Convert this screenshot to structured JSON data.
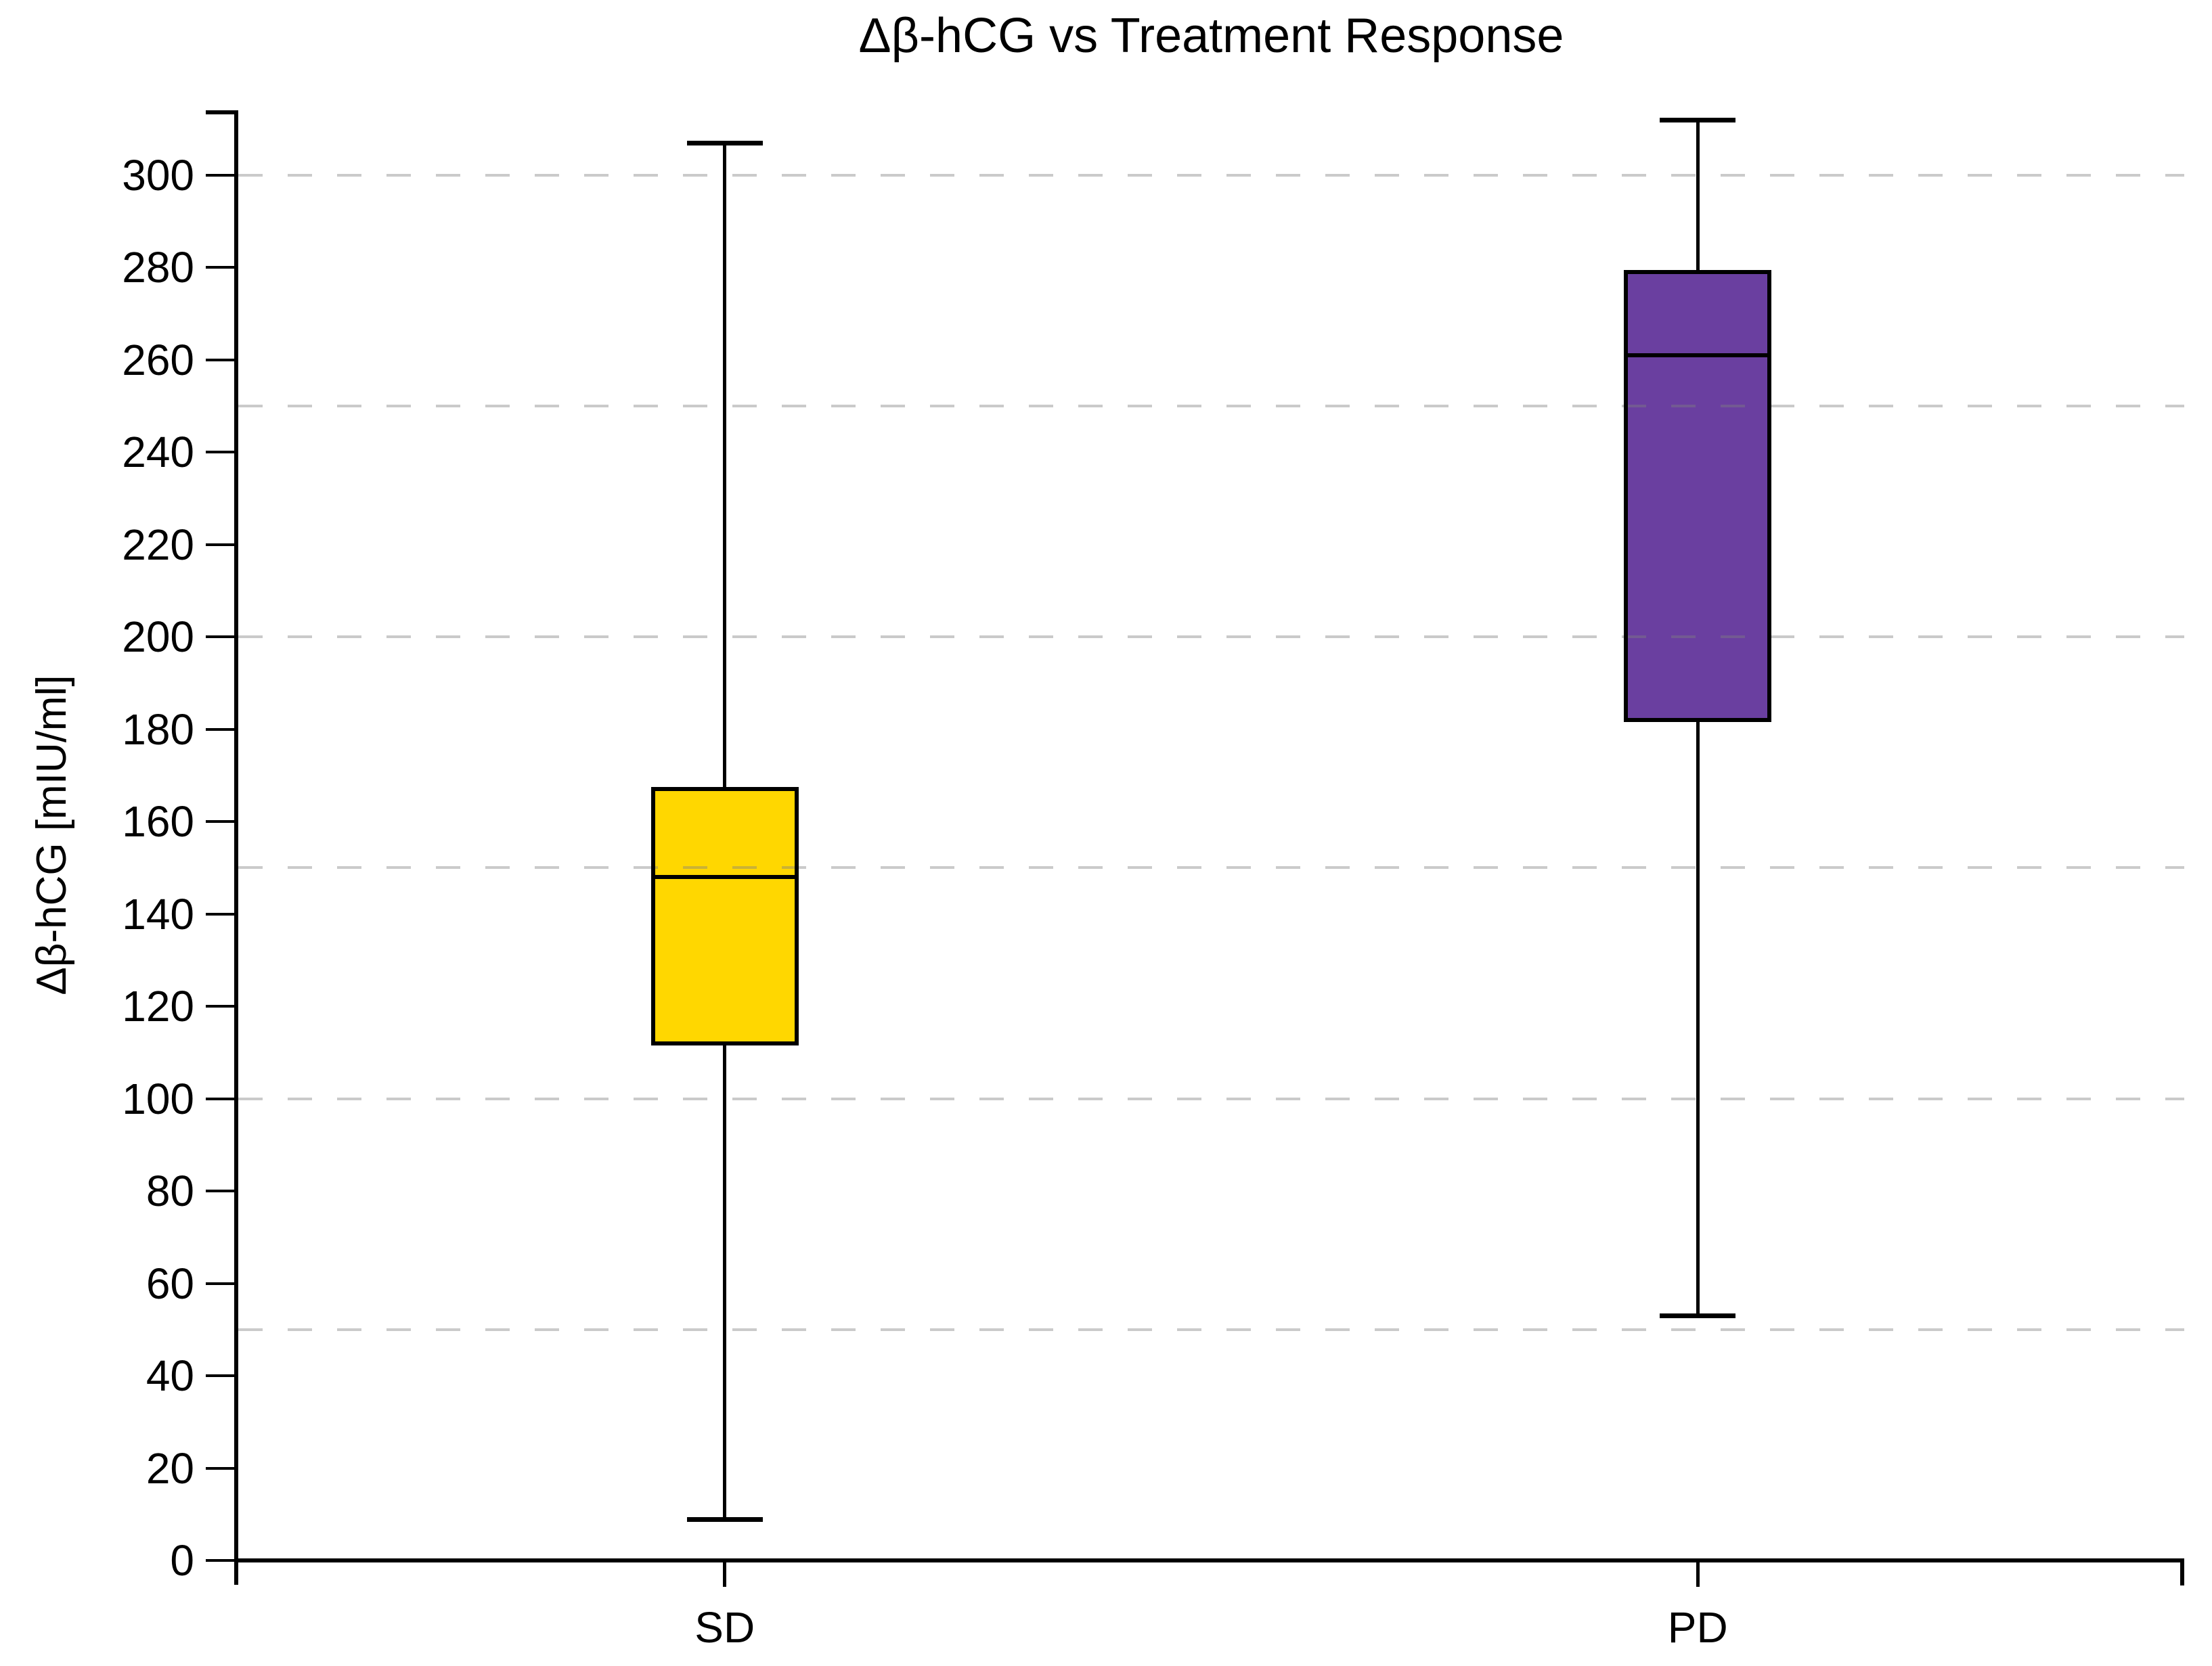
{
  "chart_data": {
    "type": "box",
    "title": "Δβ-hCG vs Treatment Response",
    "ylabel": "Δβ-hCG [mIU/ml]",
    "xlabel": "",
    "categories": [
      "SD",
      "PD"
    ],
    "series": [
      {
        "name": "SD",
        "whisker_min": 9,
        "q1": 112,
        "median": 148,
        "q3": 167,
        "whisker_max": 307,
        "fill_color": "#FFD700"
      },
      {
        "name": "PD",
        "whisker_min": 53,
        "q1": 182,
        "median": 261,
        "q3": 279,
        "whisker_max": 312,
        "fill_color": "#6A3FA0"
      }
    ],
    "y_axis": {
      "min": 0,
      "max": 300,
      "tick_step": 20,
      "ticks": [
        0,
        20,
        40,
        60,
        80,
        100,
        120,
        140,
        160,
        180,
        200,
        220,
        240,
        260,
        280,
        300
      ],
      "gridlines_at": [
        50,
        100,
        150,
        200,
        250,
        300
      ]
    },
    "grid": {
      "style": "dashed",
      "orientation": "horizontal",
      "color": "rgba(128,128,128,0.42)"
    },
    "axis_color": "#000000",
    "legend": "none"
  }
}
